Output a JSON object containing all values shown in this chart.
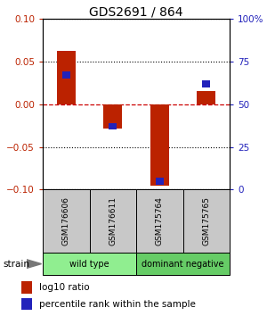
{
  "title": "GDS2691 / 864",
  "samples": [
    "GSM176606",
    "GSM176611",
    "GSM175764",
    "GSM175765"
  ],
  "log10_ratio": [
    0.063,
    -0.028,
    -0.095,
    0.015
  ],
  "percentile_rank": [
    67,
    37,
    5,
    62
  ],
  "groups": [
    {
      "label": "wild type",
      "samples": [
        0,
        1
      ],
      "color": "#90EE90"
    },
    {
      "label": "dominant negative",
      "samples": [
        2,
        3
      ],
      "color": "#66CC66"
    }
  ],
  "ylim": [
    -0.1,
    0.1
  ],
  "yticks_left": [
    -0.1,
    -0.05,
    0,
    0.05,
    0.1
  ],
  "yticks_right": [
    0,
    25,
    50,
    75,
    100
  ],
  "red_color": "#BB2200",
  "blue_color": "#2222BB",
  "zero_line_color": "#CC0000",
  "title_fontsize": 10,
  "tick_fontsize": 7.5,
  "legend_fontsize": 7.5,
  "strain_label": "strain",
  "legend_items": [
    "log10 ratio",
    "percentile rank within the sample"
  ]
}
